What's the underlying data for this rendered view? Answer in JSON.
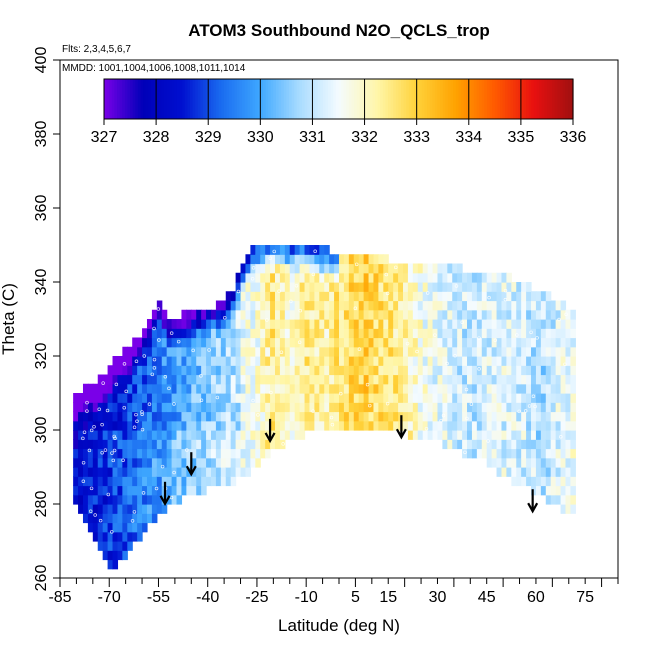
{
  "chart_data": {
    "type": "heatmap",
    "title": "ATOM3 Southbound N2O_QCLS_trop",
    "flights_note": "Flts: 2,3,4,5,6,7",
    "dates_note": "MMDD: 1001,1004,1006,1008,1011,1014",
    "xlabel": "Latitude (deg N)",
    "ylabel": "Theta (C)",
    "xlim": [
      -85,
      85
    ],
    "ylim": [
      260,
      400
    ],
    "x_tick_labels": [
      "-85",
      "-70",
      "-55",
      "-40",
      "-25",
      "-10",
      "5",
      "15",
      "30",
      "45",
      "60",
      "75"
    ],
    "x_tick_values": [
      -85,
      -70,
      -55,
      -40,
      -25,
      -10,
      5,
      15,
      30,
      45,
      60,
      75
    ],
    "y_tick_labels": [
      "260",
      "280",
      "300",
      "320",
      "340",
      "360",
      "380",
      "400"
    ],
    "y_tick_values": [
      260,
      280,
      300,
      320,
      340,
      360,
      380,
      400
    ],
    "colorbar": {
      "min": 327,
      "max": 336,
      "tick_labels": [
        "327",
        "328",
        "329",
        "330",
        "331",
        "332",
        "333",
        "334",
        "335",
        "336"
      ],
      "colors": [
        "#7a00e8",
        "#0000b8",
        "#0010d0",
        "#1a6cf0",
        "#3fa8ff",
        "#a9dcff",
        "#f4fbff",
        "#fff6a8",
        "#ffd23a",
        "#ffa200",
        "#ff5a00",
        "#e81010",
        "#a01010"
      ]
    },
    "value_profile": {
      "lat": [
        -80,
        -72,
        -64,
        -56,
        -48,
        -40,
        -32,
        -25,
        -20,
        -15,
        -10,
        -4,
        2,
        8,
        14,
        20,
        26,
        32,
        40,
        48,
        56,
        62,
        68,
        72
      ],
      "value": [
        328.2,
        328.6,
        329.2,
        329.8,
        330.4,
        330.9,
        331.3,
        331.7,
        332.5,
        331.8,
        332.4,
        332.2,
        332.7,
        333.0,
        332.6,
        332.3,
        331.6,
        331.3,
        331.0,
        331.3,
        331.2,
        330.8,
        331.4,
        331.6
      ]
    },
    "upper_boundary": {
      "lat": [
        -81,
        -76,
        -72,
        -68,
        -64,
        -60,
        -57,
        -55,
        -52,
        -48,
        -44,
        -40,
        -36,
        -33,
        -30,
        -27,
        -24,
        -20,
        -15,
        -10,
        -5,
        0,
        5,
        10,
        15,
        20,
        25,
        30,
        35,
        40,
        45,
        50,
        55,
        60,
        65,
        70,
        72
      ],
      "theta": [
        309,
        311,
        314,
        318,
        321,
        325,
        330,
        335,
        330,
        330,
        331,
        332,
        333,
        336,
        342,
        348,
        350,
        350,
        350,
        349,
        348,
        347,
        346,
        346,
        345,
        345,
        344,
        343,
        343,
        342,
        342,
        341,
        339,
        337,
        335,
        332,
        330
      ]
    },
    "lower_boundary": {
      "lat": [
        -81,
        -78,
        -75,
        -72,
        -69,
        -66,
        -63,
        -60,
        -56,
        -52,
        -48,
        -44,
        -40,
        -36,
        -32,
        -28,
        -24,
        -20,
        -15,
        -10,
        -5,
        0,
        5,
        10,
        15,
        20,
        25,
        30,
        35,
        40,
        45,
        50,
        55,
        60,
        65,
        70,
        72
      ],
      "theta": [
        280,
        276,
        271,
        266,
        263,
        265,
        268,
        272,
        276,
        279,
        281,
        283,
        284,
        285,
        286,
        288,
        291,
        294,
        297,
        299,
        300,
        300,
        300,
        300,
        300,
        299,
        298,
        297,
        295,
        293,
        291,
        288,
        285,
        283,
        280,
        277,
        276
      ]
    },
    "arrows": [
      {
        "lat": -53,
        "theta": 286
      },
      {
        "lat": -45,
        "theta": 294
      },
      {
        "lat": -21,
        "theta": 303
      },
      {
        "lat": 19,
        "theta": 304
      },
      {
        "lat": 59,
        "theta": 284
      }
    ]
  }
}
